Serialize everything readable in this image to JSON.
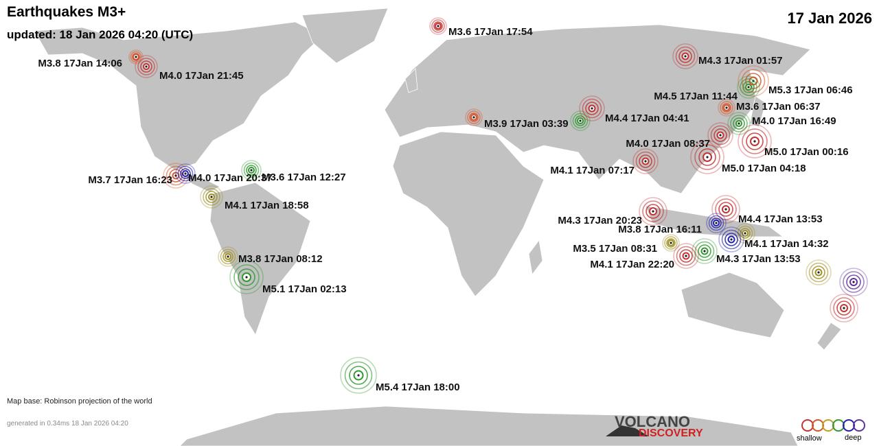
{
  "header": {
    "title": "Earthquakes M3+",
    "updated": "updated: 18 Jan 2026 04:20 (UTC)",
    "date": "17 Jan 2026"
  },
  "quakes": [
    {
      "label": "M3.6 17Jan 17:54",
      "color": "#c83030"
    },
    {
      "label": "M3.8 17Jan 14:06",
      "color": "#d8552a"
    },
    {
      "label": "M4.0 17Jan 21:45",
      "color": "#c83030"
    },
    {
      "label": "M4.3 17Jan 01:57",
      "color": "#c83030"
    },
    {
      "label": "M5.3 17Jan 06:46",
      "color": "#d8552a"
    },
    {
      "label": "M4.5 17Jan 11:44",
      "color": "#2e9a2e"
    },
    {
      "label": "M3.6 17Jan 06:37",
      "color": "#d8552a"
    },
    {
      "label": "M4.4 17Jan 04:41",
      "color": "#c83030"
    },
    {
      "label": "M3.9 17Jan 03:39",
      "color": "#d8552a"
    },
    {
      "label": "M4.0 17Jan 16:49",
      "color": "#2e9a2e"
    },
    {
      "label": "M4.0 17Jan 08:37",
      "color": "#c83030"
    },
    {
      "label": "M5.0 17Jan 00:16",
      "color": "#c83030"
    },
    {
      "label": "M4.1 17Jan 07:17",
      "color": "#c83030"
    },
    {
      "label": "M5.0 17Jan 04:18",
      "color": "#c83030"
    },
    {
      "label": "M3.7 17Jan 16:23",
      "color": "#d8552a"
    },
    {
      "label": "M4.0 17Jan 20:37",
      "color": "#2020b0"
    },
    {
      "label": "M3.6 17Jan 12:27",
      "color": "#2e9a2e"
    },
    {
      "label": "M4.1 17Jan 18:58",
      "color": "#a09020"
    },
    {
      "label": "M4.3 17Jan 20:23",
      "color": "#c83030"
    },
    {
      "label": "M4.4 17Jan 13:53",
      "color": "#c83030"
    },
    {
      "label": "M3.8 17Jan 16:11",
      "color": "#2020b0"
    },
    {
      "label": "M4.1 17Jan 14:32",
      "color": "#2020b0"
    },
    {
      "label": "M3.5 17Jan 08:31",
      "color": "#a09020"
    },
    {
      "label": "M4.3 17Jan 13:53",
      "color": "#2e9a2e"
    },
    {
      "label": "M4.1 17Jan 22:20",
      "color": "#c83030"
    },
    {
      "label": "M3.8 17Jan 08:12",
      "color": "#a09020"
    },
    {
      "label": "M5.1 17Jan 02:13",
      "color": "#2e9a2e"
    },
    {
      "label": "M5.4 17Jan 18:00",
      "color": "#2e9a2e"
    }
  ],
  "footer": {
    "map_base": "Map base: Robinson projection of the world",
    "generated": "generated in 0.34ms 18 Jan 2026 04:20"
  },
  "logo": {
    "line1": "VOLCANO",
    "line2": "DISCOVERY"
  },
  "legend": {
    "shallow": "shallow",
    "deep": "deep"
  }
}
